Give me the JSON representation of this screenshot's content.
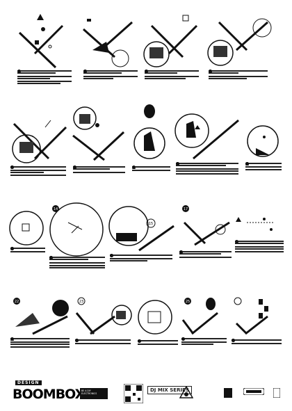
{
  "footer": {
    "brand_tagline": "DESIGN",
    "brand_name": "BOOMBOX",
    "tag_line1": "BE A DIY",
    "tag_line2": "ELECTRONICS",
    "series_name": "DJ MIX SERIES"
  },
  "steps": {
    "s14": "14",
    "s15": "15",
    "s16": "16",
    "s17": "17",
    "s18": "18",
    "s22": "22",
    "s23": "23",
    "s24": "24",
    "s25": "25"
  },
  "icons": [
    "warning-triangle-icon",
    "check-circle-icon",
    "cross-circle-icon",
    "screw-icon",
    "spanner-icon"
  ]
}
